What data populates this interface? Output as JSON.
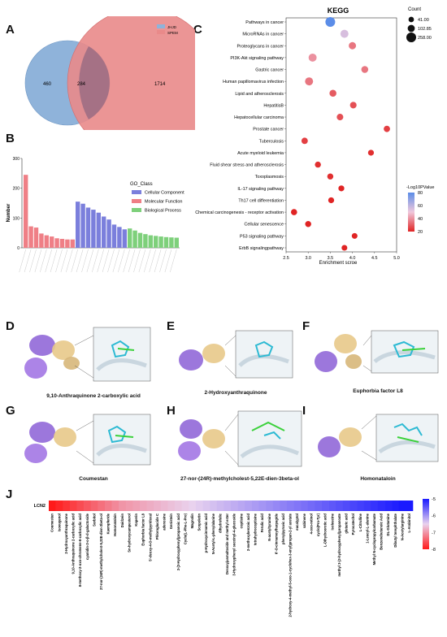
{
  "panels": {
    "A": {
      "label": "A",
      "legend": [
        {
          "name": "JHJD",
          "color": "#8fb3da"
        },
        {
          "name": "SPEM",
          "color": "#e98a8a"
        }
      ],
      "left_only": "460",
      "overlap": "284",
      "right_only": "1714"
    },
    "B": {
      "label": "B"
    },
    "C": {
      "label": "C"
    },
    "D": {
      "label": "D",
      "caption": "9,10-Anthraquinone 2-carboxylic acid"
    },
    "E": {
      "label": "E",
      "caption": "2-Hydroxyanthraquinone"
    },
    "F": {
      "label": "F",
      "caption": "Euphorbia factor L8"
    },
    "G": {
      "label": "G",
      "caption": "Coumestan"
    },
    "H": {
      "label": "H",
      "caption": "27-nor-(24R)-methylcholest-5,22E-dien-3beta-ol"
    },
    "I": {
      "label": "I",
      "caption": "Homonataloin"
    },
    "J": {
      "label": "J"
    }
  },
  "chart_data": [
    {
      "id": "go",
      "type": "bar",
      "ylabel": "Number",
      "ylim": [
        0,
        300
      ],
      "yticks": [
        0,
        100,
        200,
        300
      ],
      "legend_title": "GO_Class",
      "legend_position": "right",
      "groups": [
        {
          "name": "Cellular Component",
          "color": "#7b7fdc",
          "values": [
            155,
            148,
            135,
            128,
            118,
            105,
            95,
            78,
            70,
            62
          ]
        },
        {
          "name": "Molecular Function",
          "color": "#ef7f86",
          "values": [
            245,
            72,
            68,
            48,
            42,
            38,
            32,
            30,
            28,
            28
          ]
        },
        {
          "name": "Biological Process",
          "color": "#7ed07b",
          "values": [
            65,
            58,
            50,
            46,
            42,
            40,
            38,
            36,
            35,
            34
          ]
        }
      ],
      "order": [
        "Molecular Function",
        "Cellular Component",
        "Biological Process"
      ]
    },
    {
      "id": "kegg",
      "type": "scatter",
      "title": "KEGG",
      "xlabel": "Enrichment scroe",
      "xlim": [
        2.5,
        5.0
      ],
      "xticks": [
        2.5,
        3.0,
        3.5,
        4.0,
        4.5,
        5.0
      ],
      "categories": [
        "Pathways in cancer",
        "MicroRNAs in cancer",
        "Proteoglycans in cancer",
        "PI3K-Akt signaling pathway",
        "Gastric cancer",
        "Human papillomavirus infection",
        "Lipid and atherosclerosis",
        "HepatitisB",
        "Hepatocellular carcinoma",
        "Prostate cancer",
        "Tuberculosis",
        "Acute myeloid leukemia",
        "Fluid shear stress and atherosclerosis",
        "Toxoplasmosis",
        "IL-17 signaling pathway",
        "Th17 cell differentiation",
        "Chemical carcinogenesis - receptor activation",
        "Cellular senescence",
        "P53 signaling pathway",
        "ErbB signalingpathway"
      ],
      "x": [
        3.5,
        3.82,
        4.0,
        3.1,
        4.28,
        3.02,
        3.56,
        4.02,
        3.72,
        4.78,
        2.92,
        4.42,
        3.22,
        3.5,
        3.75,
        3.52,
        2.68,
        3.0,
        4.05,
        3.82
      ],
      "count": [
        258,
        150,
        110,
        150,
        95,
        150,
        95,
        80,
        80,
        70,
        70,
        55,
        60,
        60,
        55,
        55,
        65,
        60,
        50,
        50
      ],
      "neglog10p": [
        80,
        55,
        35,
        40,
        35,
        35,
        30,
        28,
        28,
        25,
        25,
        22,
        22,
        22,
        20,
        20,
        20,
        20,
        20,
        20
      ],
      "size_legend_title": "Count",
      "size_legend": [
        "41.00",
        "102.85",
        "258.00"
      ],
      "color_legend_title": "-Log10PValue",
      "color_ticks": [
        80,
        60,
        40,
        20
      ],
      "color_range": [
        20,
        80
      ],
      "colors": {
        "low": "#e02424",
        "high": "#5b8de8"
      }
    },
    {
      "id": "heatmap",
      "type": "heatmap",
      "row_label": "LCN2",
      "color_ticks": [
        -5,
        -6,
        -7,
        -8
      ],
      "color_range": [
        -8,
        -5
      ],
      "colors": {
        "low": "#ff1a1a",
        "high": "#1a1aff"
      },
      "categories": [
        "Coumestan",
        "Isoeugenol",
        "2-Hydroxyanthraquinone",
        "9,10-Anthraquinone 2-carboxylic acid",
        "8-methoxy-2-oxo-chromene-6-carboxylic acid",
        "cyanidin-3-o-β-d-galactoside",
        "Sorbitol",
        "27-nor-(24R)-methylcholest-5,22E-dien-3beta-ol",
        "Kaempferide",
        "Homonataloin",
        "Daidzein",
        "Sn-hydroxycampesterol",
        "Kaperin",
        "Euphorbia factor L8",
        "5'-deoxy-4-O-methylpyridoxal",
        "Phloroglucide C",
        "adenosine",
        "Genistein",
        "3-(3-Hydroxyphenyl)propanoic acid",
        "Cyclo(L-Phe-L-Pro)",
        "Magnolin",
        "Scopoletin",
        "p-Hydroxycinnamic acid",
        "N-Acetyl-L-phenylalanine",
        "dihydrofolic",
        "Desoxyjusmaltoside and methyl ester",
        "3-Hydroxyphenyl succinyl-4-glucoside",
        "coptisine",
        "2-methoxybenzoic acid",
        "tetrahydrocoptisine",
        "Ferulic acid",
        "N-acetyltyramine",
        "6'-O-cinnamoylharpagide",
        "phenylpyruvic acid",
        "2-hydroxy-4-methyl-5-oxo-1-cyclohex-3-enyl)propan-2-yl acetate",
        "eucalyptol",
        "sabinene",
        "4-oxo-retinol",
        "cyclo(Pro-Tyr)",
        "L-Dihydroorotic acid",
        "Isoleucine",
        "methyl 3-(3-hydroxyphenyl)propanoate",
        "glutaric acid",
        "Pyrocatechol",
        "L-Citrulline",
        "1-Leucyl-L-alanine",
        "Methyl N-cyclopropylcarbamate",
        "Benzenebutanoic Acid",
        "DL-Glutamine",
        "Dibutyl terephthalate",
        "N-Acetylarginine",
        "L-Arabinitol"
      ],
      "values": [
        -8.0,
        -7.9,
        -7.8,
        -7.7,
        -7.6,
        -7.5,
        -7.4,
        -7.3,
        -7.2,
        -7.1,
        -7.0,
        -6.95,
        -6.9,
        -6.85,
        -6.8,
        -6.75,
        -6.7,
        -6.65,
        -6.6,
        -6.55,
        -6.5,
        -6.45,
        -6.4,
        -6.35,
        -6.3,
        -6.25,
        -6.2,
        -6.15,
        -6.1,
        -6.05,
        -6.0,
        -5.95,
        -5.9,
        -5.85,
        -5.8,
        -5.75,
        -5.7,
        -5.65,
        -5.6,
        -5.55,
        -5.5,
        -5.45,
        -5.4,
        -5.35,
        -5.3,
        -5.25,
        -5.2,
        -5.15,
        -5.1,
        -5.05,
        -5.0,
        -4.95
      ]
    }
  ]
}
